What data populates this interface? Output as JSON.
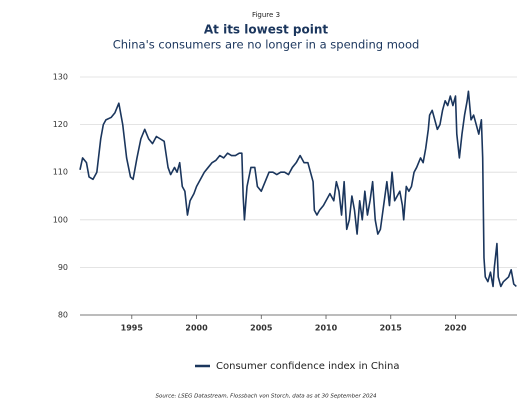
{
  "chart_data": {
    "type": "line",
    "figure_label": "Figure 3",
    "title": "At its lowest point",
    "subtitle": "China's consumers are no longer in a spending mood",
    "source": "Source: LSEG Datastream, Flossbach von Storch, data as at 30 September 2024",
    "x": [
      1991.0,
      1991.2,
      1991.5,
      1991.7,
      1992.0,
      1992.3,
      1992.6,
      1992.8,
      1993.0,
      1993.4,
      1993.7,
      1994.0,
      1994.3,
      1994.6,
      1994.9,
      1995.1,
      1995.4,
      1995.7,
      1996.0,
      1996.3,
      1996.6,
      1996.9,
      1997.2,
      1997.5,
      1997.8,
      1998.0,
      1998.3,
      1998.5,
      1998.7,
      1998.9,
      1999.1,
      1999.3,
      1999.5,
      1999.8,
      2000.0,
      2000.3,
      2000.6,
      2000.9,
      2001.2,
      2001.5,
      2001.8,
      2002.1,
      2002.4,
      2002.7,
      2003.0,
      2003.3,
      2003.5,
      2003.6,
      2003.7,
      2003.9,
      2004.2,
      2004.5,
      2004.7,
      2005.0,
      2005.3,
      2005.6,
      2005.9,
      2006.2,
      2006.5,
      2006.8,
      2007.1,
      2007.4,
      2007.7,
      2008.0,
      2008.3,
      2008.6,
      2008.8,
      2009.0,
      2009.1,
      2009.3,
      2009.5,
      2009.8,
      2010.0,
      2010.3,
      2010.6,
      2010.8,
      2011.0,
      2011.2,
      2011.4,
      2011.6,
      2011.8,
      2012.0,
      2012.2,
      2012.4,
      2012.6,
      2012.8,
      2013.0,
      2013.2,
      2013.4,
      2013.6,
      2013.8,
      2014.0,
      2014.2,
      2014.5,
      2014.7,
      2014.9,
      2015.1,
      2015.3,
      2015.5,
      2015.7,
      2015.9,
      2016.0,
      2016.2,
      2016.4,
      2016.6,
      2016.8,
      2017.0,
      2017.3,
      2017.5,
      2017.7,
      2017.9,
      2018.0,
      2018.2,
      2018.4,
      2018.6,
      2018.8,
      2019.0,
      2019.2,
      2019.4,
      2019.6,
      2019.8,
      2020.0,
      2020.1,
      2020.3,
      2020.5,
      2020.7,
      2020.9,
      2021.0,
      2021.2,
      2021.4,
      2021.6,
      2021.8,
      2022.0,
      2022.1,
      2022.2,
      2022.3,
      2022.5,
      2022.7,
      2022.9,
      2023.0,
      2023.2,
      2023.3,
      2023.5,
      2023.7,
      2023.9,
      2024.1,
      2024.3,
      2024.5,
      2024.7
    ],
    "series": [
      {
        "name": "Consumer confidence index in China",
        "color": "#1b365d",
        "values": [
          110.5,
          113,
          112,
          109,
          108.5,
          110,
          117,
          120,
          121,
          121.5,
          122.5,
          124.5,
          120,
          113,
          109,
          108.5,
          113,
          117,
          119,
          117,
          116,
          117.5,
          117,
          116.5,
          111,
          109.5,
          111,
          110,
          112,
          107,
          106,
          101,
          104,
          105.5,
          107,
          108.5,
          110,
          111,
          112,
          112.5,
          113.5,
          113,
          114,
          113.5,
          113.5,
          114,
          114,
          105,
          100,
          107,
          111,
          111,
          107,
          106,
          108,
          110,
          110,
          109.5,
          110,
          110,
          109.5,
          111,
          112,
          113.5,
          112,
          112,
          110,
          108,
          102,
          101,
          102,
          103,
          104,
          105.5,
          104,
          108,
          106,
          101,
          108,
          98,
          100,
          105,
          102,
          97,
          104,
          100,
          106,
          101,
          104,
          108,
          100,
          97,
          98,
          104,
          108,
          103,
          110,
          104,
          105,
          106,
          103,
          100,
          107,
          106,
          107,
          110,
          111,
          113,
          112,
          115,
          119,
          122,
          123,
          121,
          119,
          120,
          123,
          125,
          124,
          126,
          124,
          126,
          118,
          113,
          118,
          122,
          125,
          127,
          121,
          122,
          120,
          118,
          121,
          113,
          92,
          88,
          87,
          89,
          86,
          90,
          95,
          88,
          86,
          87,
          87.5,
          88,
          89.5,
          86.5,
          86
        ]
      }
    ],
    "xlim": [
      1991,
      2024.75
    ],
    "xticks": [
      1995,
      2000,
      2005,
      2010,
      2015,
      2020
    ],
    "ylim": [
      80,
      130
    ],
    "yticks": [
      80,
      90,
      100,
      110,
      120,
      130
    ],
    "grid": true
  }
}
